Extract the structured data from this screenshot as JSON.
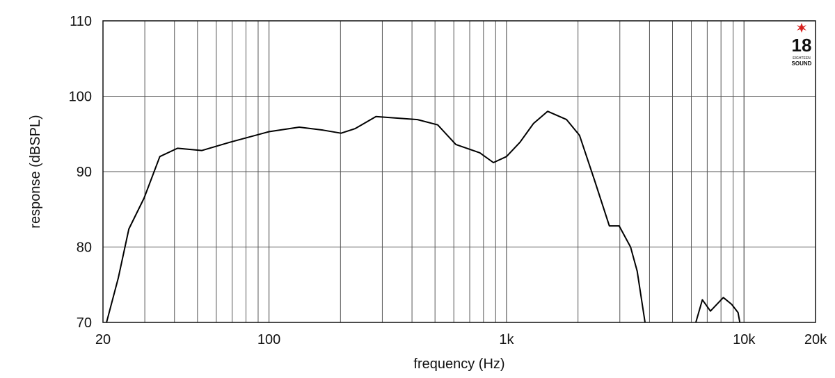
{
  "chart_data": {
    "type": "line",
    "x_label": "frequency (Hz)",
    "y_label": "response (dBSPL)",
    "log_x": true,
    "grid": true,
    "minor_grid": true,
    "xlim": [
      20,
      20000
    ],
    "ylim": [
      70,
      110
    ],
    "xticks": [
      20,
      100,
      {
        "value": 1000,
        "label": "1k"
      },
      {
        "value": 10000,
        "label": "10k"
      },
      {
        "value": 20000,
        "label": "20k"
      }
    ],
    "yticks": [
      70,
      80,
      90,
      100,
      110
    ],
    "color": "#000000",
    "x": [
      20.7,
      23.2,
      25.7,
      29.8,
      34.7,
      41.2,
      52.2,
      68.5,
      100,
      134,
      169,
      201,
      230,
      282,
      347,
      422,
      513,
      612,
      772,
      881,
      1000,
      1140,
      1300,
      1490,
      1790,
      2030,
      2350,
      2710,
      2980,
      3330,
      3550,
      3830,
      5000,
      6270,
      6680,
      7220,
      8180,
      8870,
      9440,
      9600
    ],
    "y": [
      70,
      75.9,
      82.4,
      86.5,
      92.0,
      93.1,
      92.8,
      93.9,
      95.3,
      95.9,
      95.5,
      95.1,
      95.7,
      97.3,
      97.1,
      96.9,
      96.2,
      93.6,
      92.5,
      91.2,
      92.0,
      93.9,
      96.4,
      98.0,
      96.9,
      94.8,
      88.8,
      82.8,
      82.8,
      80.0,
      76.8,
      70,
      null,
      70,
      73.0,
      71.5,
      73.3,
      72.4,
      71.3,
      70
    ]
  },
  "logo": {
    "number": "18",
    "small": "EIGHTEEN",
    "brand": "SOUND"
  }
}
